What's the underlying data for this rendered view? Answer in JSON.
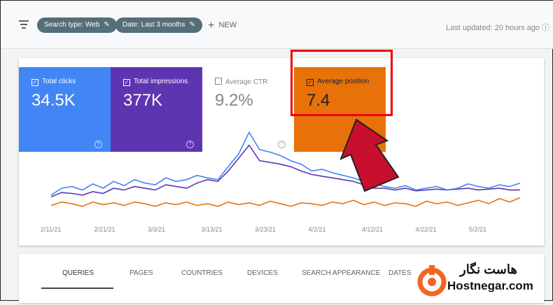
{
  "toolbar": {
    "chips": [
      "Search type: Web",
      "Date: Last 3 months"
    ],
    "new_label": "NEW",
    "last_updated": "Last updated: 20 hours ago"
  },
  "metrics": [
    {
      "label": "Total clicks",
      "value": "34.5K",
      "checked": true,
      "color": "#4285f4"
    },
    {
      "label": "Total impressions",
      "value": "377K",
      "checked": true,
      "color": "#5e35b1"
    },
    {
      "label": "Average CTR",
      "value": "9.2%",
      "checked": false,
      "color": "#ffffff"
    },
    {
      "label": "Average position",
      "value": "7.4",
      "checked": true,
      "color": "#e8710a"
    }
  ],
  "chart_data": {
    "type": "line",
    "x_labels": [
      "2/11/21",
      "2/21/21",
      "3/3/21",
      "3/13/21",
      "3/23/21",
      "4/2/21",
      "4/12/21",
      "4/22/21",
      "5/2/21"
    ],
    "series": [
      {
        "name": "Total clicks",
        "color": "#4285f4",
        "values": [
          22,
          30,
          32,
          28,
          35,
          30,
          38,
          33,
          40,
          36,
          34,
          42,
          38,
          40,
          45,
          42,
          40,
          55,
          70,
          95,
          75,
          72,
          68,
          62,
          58,
          50,
          52,
          48,
          45,
          42,
          38,
          35,
          32,
          30,
          33,
          28,
          30,
          32,
          28,
          30,
          35,
          32,
          30,
          34,
          32,
          36
        ]
      },
      {
        "name": "Total impressions",
        "color": "#5e35b1",
        "values": [
          20,
          25,
          24,
          22,
          26,
          24,
          30,
          28,
          32,
          30,
          28,
          34,
          32,
          30,
          36,
          40,
          38,
          50,
          65,
          80,
          62,
          60,
          58,
          55,
          50,
          46,
          44,
          42,
          40,
          38,
          34,
          30,
          30,
          28,
          30,
          27,
          28,
          29,
          28,
          29,
          30,
          28,
          29,
          30,
          28,
          28
        ]
      },
      {
        "name": "Average position",
        "color": "#e8710a",
        "values": [
          10,
          14,
          12,
          9,
          14,
          11,
          13,
          10,
          14,
          12,
          9,
          13,
          11,
          14,
          10,
          12,
          9,
          14,
          11,
          13,
          10,
          15,
          12,
          9,
          13,
          12,
          10,
          14,
          12,
          16,
          11,
          14,
          10,
          13,
          12,
          9,
          15,
          12,
          14,
          10,
          13,
          16,
          12,
          18,
          14,
          19
        ]
      }
    ]
  },
  "tabs": [
    "QUERIES",
    "PAGES",
    "COUNTRIES",
    "DEVICES",
    "SEARCH APPEARANCE",
    "DATES"
  ],
  "logo": {
    "fa": "هاست نگار",
    "en": "Hostnegar.com"
  }
}
